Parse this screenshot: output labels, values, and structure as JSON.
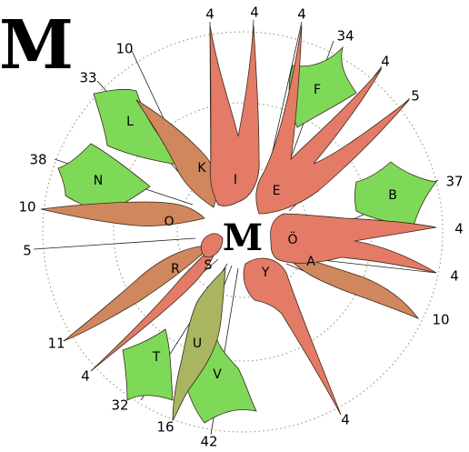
{
  "title_letter": "M",
  "center_letter": "M",
  "colors": {
    "red_petal": "#e37b66",
    "brown_petal": "#d0875e",
    "olive_petal": "#a9b561",
    "green_petal": "#7ed958",
    "ring": "#8a8a5a"
  },
  "petals": [
    {
      "label": "I",
      "count": "4",
      "color": "red"
    },
    {
      "label": "E",
      "count": "4",
      "color": "red"
    },
    {
      "label": "K",
      "count": "10",
      "color": "brown"
    },
    {
      "label": "O",
      "count": "10",
      "color": "brown"
    },
    {
      "label": "R",
      "count": "11",
      "color": "brown"
    },
    {
      "label": "S",
      "count": "5",
      "color": "red"
    },
    {
      "label": "Ö",
      "count": "5",
      "color": "red"
    },
    {
      "label": "A",
      "count": "10",
      "color": "brown"
    },
    {
      "label": "Y",
      "count": "4",
      "color": "red"
    },
    {
      "label": "U",
      "count": "16",
      "color": "olive"
    },
    {
      "label": "F",
      "count": "34",
      "color": "green"
    },
    {
      "label": "B",
      "count": "37",
      "color": "green"
    },
    {
      "label": "L",
      "count": "33",
      "color": "green"
    },
    {
      "label": "N",
      "count": "38",
      "color": "green"
    },
    {
      "label": "T",
      "count": "32",
      "color": "green"
    },
    {
      "label": "V",
      "count": "42",
      "color": "green"
    }
  ],
  "numbers": [
    "4",
    "4",
    "4",
    "34",
    "4",
    "10",
    "33",
    "5",
    "38",
    "37",
    "10",
    "4",
    "5",
    "4",
    "11",
    "10",
    "4",
    "32",
    "4",
    "16",
    "42"
  ]
}
